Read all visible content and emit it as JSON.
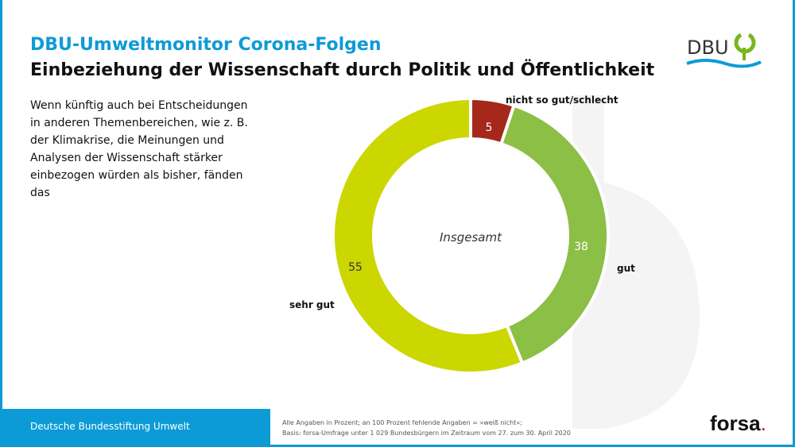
{
  "header": {
    "title": "DBU-Umweltmonitor Corona-Folgen",
    "subtitle": "Einbeziehung der Wissenschaft durch Politik und Öffentlichkeit"
  },
  "question": "Wenn künftig auch bei Entscheidungen in anderen Themenbereichen, wie z. B. der Klimakrise, die Meinungen und Analysen der Wissenschaft stärker einbezogen würden als bisher, fänden das",
  "logo": {
    "text": "DBU"
  },
  "footer": {
    "org": "Deutsche Bundesstiftung Umwelt",
    "note1": "Alle Angaben in Prozent; an 100 Prozent fehlende Angaben = »weiß nicht«;",
    "note2": "Basis: forsa-Umfrage unter 1 029 Bundesbürgern im Zeitraum vom 27. zum 30. April 2020",
    "brand": "forsa",
    "brand_dot": "."
  },
  "chart_data": {
    "type": "pie",
    "donut": true,
    "center_label": "Insgesamt",
    "categories": [
      "nicht so gut/schlecht",
      "gut",
      "sehr gut"
    ],
    "values": [
      5,
      38,
      55
    ],
    "colors": [
      "#a5281b",
      "#8cbf45",
      "#ccd600"
    ]
  }
}
